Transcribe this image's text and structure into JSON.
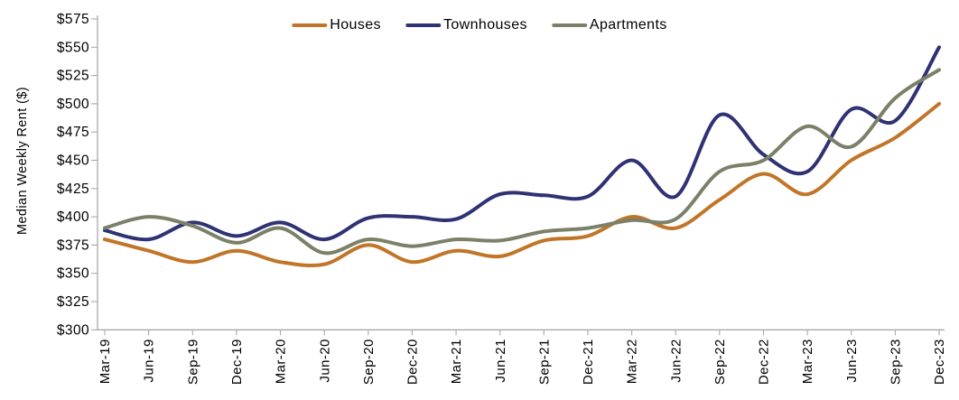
{
  "chart_data": {
    "type": "line",
    "title": "",
    "ylabel": "Median Weekly Rent ($)",
    "xlabel": "",
    "ylim": [
      300,
      575
    ],
    "y_tick_step": 25,
    "y_tick_prefix": "$",
    "grid": false,
    "smooth": true,
    "legend_position": "top-center",
    "axis_color": "#a9a9a9",
    "text_color": "#000000",
    "categories": [
      "Mar-19",
      "Jun-19",
      "Sep-19",
      "Dec-19",
      "Mar-20",
      "Jun-20",
      "Sep-20",
      "Dec-20",
      "Mar-21",
      "Jun-21",
      "Sep-21",
      "Dec-21",
      "Mar-22",
      "Jun-22",
      "Sep-22",
      "Dec-22",
      "Mar-23",
      "Jun-23",
      "Sep-23",
      "Dec-23"
    ],
    "series": [
      {
        "name": "Houses",
        "color": "#C17528",
        "values": [
          380,
          370,
          360,
          370,
          360,
          358,
          375,
          360,
          370,
          365,
          379,
          383,
          400,
          390,
          415,
          438,
          420,
          450,
          470,
          500
        ]
      },
      {
        "name": "Townhouses",
        "color": "#2F3273",
        "values": [
          388,
          380,
          395,
          383,
          395,
          380,
          399,
          400,
          398,
          420,
          419,
          418,
          450,
          418,
          490,
          455,
          440,
          495,
          485,
          550
        ]
      },
      {
        "name": "Apartments",
        "color": "#7B8168",
        "values": [
          390,
          400,
          392,
          377,
          390,
          368,
          380,
          374,
          380,
          379,
          387,
          390,
          397,
          398,
          440,
          450,
          480,
          462,
          505,
          530
        ]
      }
    ]
  }
}
